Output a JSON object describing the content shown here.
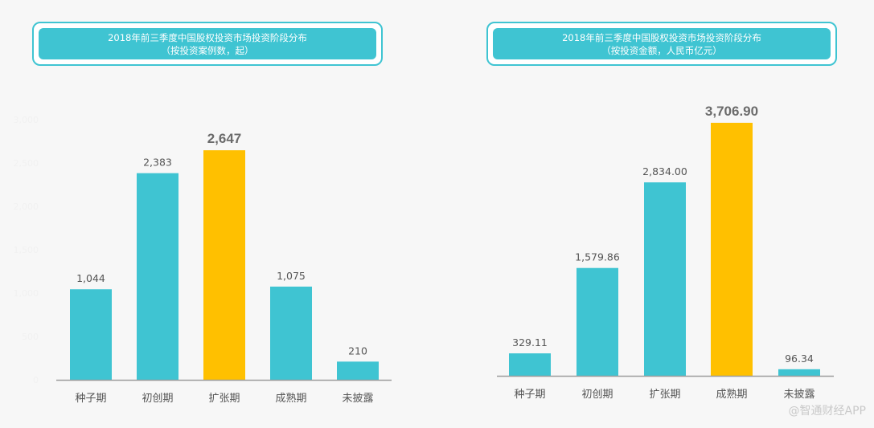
{
  "colors": {
    "bar": "#3fc4d2",
    "highlight": "#ffc000",
    "axis": "#9e9e9e",
    "label": "#555555",
    "faint_tick": "#f1f1f1"
  },
  "watermark": "@智通财经APP",
  "chart_data": [
    {
      "type": "bar",
      "title": "2018年前三季度中国股权投资市场投资阶段分布",
      "subtitle": "（按投资案例数，起）",
      "categories": [
        "种子期",
        "初创期",
        "扩张期",
        "成熟期",
        "未披露"
      ],
      "values": [
        1044,
        2383,
        2647,
        1075,
        210
      ],
      "value_labels": [
        "1,044",
        "2,383",
        "2,647",
        "1,075",
        "210"
      ],
      "highlight_index": 2,
      "ylim": [
        0,
        3000
      ],
      "faint_ticks": [
        "0",
        "500",
        "1,000",
        "1,500",
        "2,000",
        "2,500",
        "3,000"
      ],
      "grid": false
    },
    {
      "type": "bar",
      "title": "2018年前三季度中国股权投资市场投资阶段分布",
      "subtitle": "（按投资金额，人民币亿元）",
      "categories": [
        "种子期",
        "初创期",
        "扩张期",
        "成熟期",
        "未披露"
      ],
      "values": [
        329.11,
        1579.86,
        2834.0,
        3706.9,
        96.34
      ],
      "value_labels": [
        "329.11",
        "1,579.86",
        "2,834.00",
        "3,706.90",
        "96.34"
      ],
      "highlight_index": 3,
      "ylim": [
        0,
        4000
      ],
      "grid": false
    }
  ]
}
